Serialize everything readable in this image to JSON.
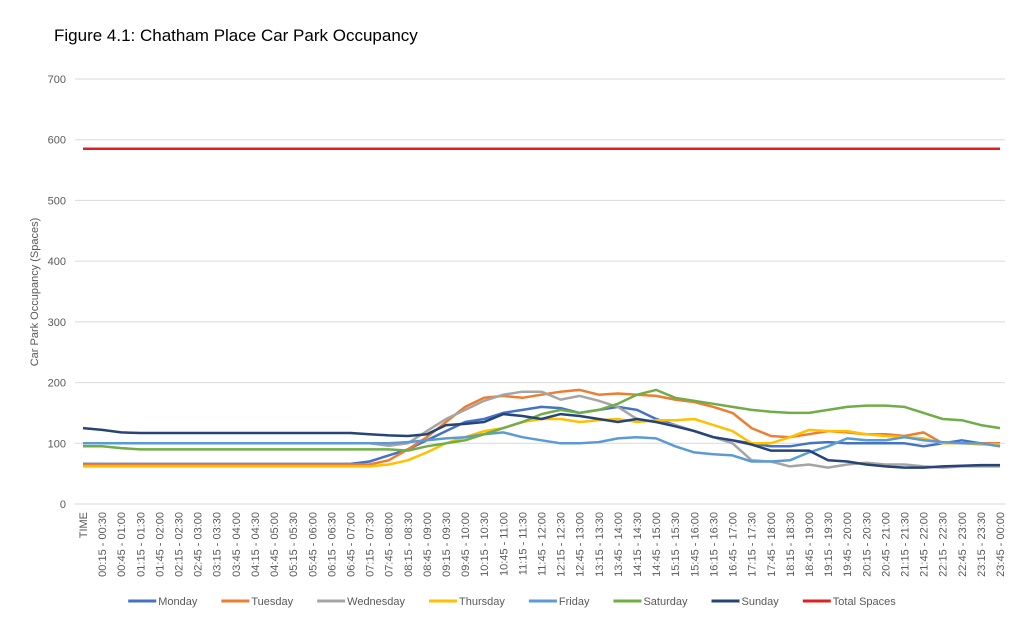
{
  "chart_data": {
    "type": "line",
    "title": "Figure 4.1: Chatham Place Car Park Occupancy",
    "y_label": "Car Park Occupancy (Spaces)",
    "categories": [
      "TIME",
      "00:15 - 00:30",
      "00:45 - 01:00",
      "01:15 - 01:30",
      "01:45 - 02:00",
      "02:15 - 02:30",
      "02:45 - 03:00",
      "03:15 - 03:30",
      "03:45 - 04:00",
      "04:15 - 04:30",
      "04:45 - 05:00",
      "05:15 - 05:30",
      "05:45 - 06:00",
      "06:15 - 06:30",
      "06:45 - 07:00",
      "07:15 - 07:30",
      "07:45 - 08:00",
      "08:15 - 08:30",
      "08:45 - 09:00",
      "09:15 - 09:30",
      "09:45 - 10:00",
      "10:15 - 10:30",
      "10:45 - 11:00",
      "11:15 - 11:30",
      "11:45 - 12:00",
      "12:15 - 12:30",
      "12:45 - 13:00",
      "13:15 - 13:30",
      "13:45 - 14:00",
      "14:15 - 14:30",
      "14:45 - 15:00",
      "15:15 - 15:30",
      "15:45 - 16:00",
      "16:15 - 16:30",
      "16:45 - 17:00",
      "17:15 - 17:30",
      "17:45 - 18:00",
      "18:15 - 18:30",
      "18:45 - 19:00",
      "19:15 - 19:30",
      "19:45 - 20:00",
      "20:15 - 20:30",
      "20:45 - 21:00",
      "21:15 - 21:30",
      "21:45 - 22:00",
      "22:15 - 22:30",
      "22:45 - 23:00",
      "23:15 - 23:30",
      "23:45 - 00:00"
    ],
    "series": [
      {
        "name": "Monday",
        "color": "#4472c4",
        "values": [
          66,
          66,
          66,
          66,
          66,
          66,
          66,
          66,
          66,
          66,
          66,
          66,
          66,
          66,
          66,
          70,
          80,
          90,
          105,
          120,
          135,
          140,
          150,
          155,
          160,
          158,
          150,
          155,
          160,
          155,
          140,
          130,
          120,
          110,
          105,
          100,
          95,
          95,
          100,
          102,
          100,
          100,
          100,
          100,
          95,
          100,
          105,
          100,
          95
        ]
      },
      {
        "name": "Tuesday",
        "color": "#ed7d31",
        "values": [
          65,
          65,
          65,
          65,
          65,
          65,
          65,
          65,
          65,
          65,
          65,
          65,
          65,
          65,
          65,
          65,
          72,
          90,
          110,
          135,
          160,
          175,
          178,
          175,
          180,
          185,
          188,
          180,
          182,
          180,
          178,
          172,
          168,
          160,
          150,
          125,
          112,
          110,
          115,
          120,
          118,
          115,
          115,
          112,
          118,
          100,
          100,
          100,
          100
        ]
      },
      {
        "name": "Wednesday",
        "color": "#a5a5a5",
        "values": [
          100,
          100,
          100,
          100,
          100,
          100,
          100,
          100,
          100,
          100,
          100,
          100,
          100,
          100,
          100,
          100,
          96,
          100,
          120,
          140,
          155,
          170,
          180,
          185,
          185,
          172,
          178,
          170,
          160,
          140,
          135,
          130,
          120,
          110,
          100,
          72,
          70,
          62,
          65,
          60,
          65,
          68,
          65,
          65,
          62,
          60,
          62,
          62,
          62
        ]
      },
      {
        "name": "Thursday",
        "color": "#ffc000",
        "values": [
          62,
          62,
          62,
          62,
          62,
          62,
          62,
          62,
          62,
          62,
          62,
          62,
          62,
          62,
          62,
          62,
          65,
          72,
          85,
          100,
          110,
          120,
          125,
          135,
          140,
          140,
          135,
          138,
          140,
          135,
          138,
          138,
          140,
          130,
          120,
          100,
          100,
          110,
          122,
          120,
          120,
          115,
          112,
          110,
          108,
          100,
          100,
          98,
          98
        ]
      },
      {
        "name": "Friday",
        "color": "#5b9bd5",
        "values": [
          100,
          100,
          100,
          100,
          100,
          100,
          100,
          100,
          100,
          100,
          100,
          100,
          100,
          100,
          100,
          100,
          100,
          102,
          105,
          108,
          110,
          115,
          118,
          110,
          105,
          100,
          100,
          102,
          108,
          110,
          108,
          95,
          85,
          82,
          80,
          70,
          70,
          72,
          85,
          95,
          108,
          105,
          105,
          110,
          105,
          102,
          100,
          100,
          95
        ]
      },
      {
        "name": "Saturday",
        "color": "#70ad47",
        "values": [
          95,
          95,
          92,
          90,
          90,
          90,
          90,
          90,
          90,
          90,
          90,
          90,
          90,
          90,
          90,
          90,
          90,
          88,
          95,
          100,
          105,
          115,
          125,
          135,
          148,
          155,
          150,
          155,
          165,
          180,
          188,
          175,
          170,
          165,
          160,
          155,
          152,
          150,
          150,
          155,
          160,
          162,
          162,
          160,
          150,
          140,
          138,
          130,
          125
        ]
      },
      {
        "name": "Sunday",
        "color": "#264478",
        "values": [
          125,
          122,
          118,
          117,
          117,
          117,
          117,
          117,
          117,
          117,
          117,
          117,
          117,
          117,
          117,
          115,
          113,
          112,
          115,
          130,
          132,
          135,
          148,
          145,
          140,
          148,
          145,
          140,
          135,
          140,
          135,
          128,
          120,
          110,
          105,
          98,
          88,
          88,
          88,
          72,
          70,
          65,
          62,
          60,
          60,
          62,
          63,
          64,
          64
        ]
      },
      {
        "name": "Total Spaces",
        "color": "#e02020",
        "values": [
          585,
          585,
          585,
          585,
          585,
          585,
          585,
          585,
          585,
          585,
          585,
          585,
          585,
          585,
          585,
          585,
          585,
          585,
          585,
          585,
          585,
          585,
          585,
          585,
          585,
          585,
          585,
          585,
          585,
          585,
          585,
          585,
          585,
          585,
          585,
          585,
          585,
          585,
          585,
          585,
          585,
          585,
          585,
          585,
          585,
          585,
          585,
          585,
          585
        ]
      }
    ],
    "ylim": [
      0,
      700
    ],
    "yticks": [
      0,
      100,
      200,
      300,
      400,
      500,
      600,
      700
    ],
    "grid": true,
    "legend": "bottom"
  }
}
